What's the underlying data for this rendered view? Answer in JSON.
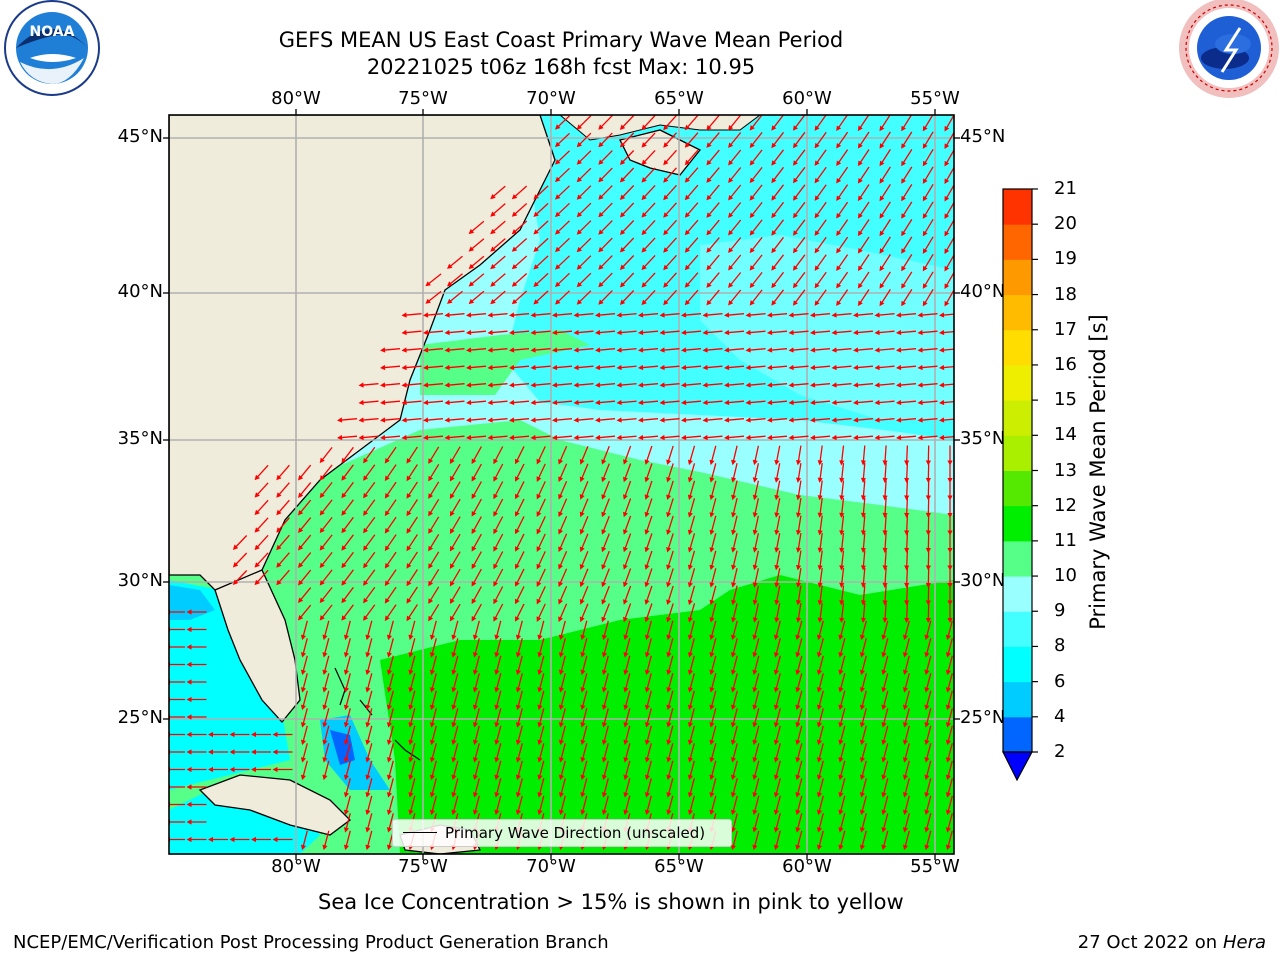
{
  "title": {
    "line1": "GEFS MEAN US East Coast Primary Wave Mean Period",
    "line2": "20221025 t06z 168h fcst   Max: 10.95"
  },
  "logos": {
    "noaa": {
      "icon": "noaa-logo-icon",
      "text": "NOAA"
    },
    "nws": {
      "icon": "nws-logo-icon"
    }
  },
  "map": {
    "lon_ticks": [
      "80°W",
      "75°W",
      "70°W",
      "65°W",
      "60°W",
      "55°W"
    ],
    "lat_ticks": [
      "45°N",
      "40°N",
      "35°N",
      "30°N",
      "25°N"
    ],
    "lon_range": [
      -85,
      -54.3
    ],
    "lat_range": [
      20.5,
      46
    ],
    "grid": true,
    "arrow_color": "#ff0000",
    "land_color": "#efecdc",
    "legend": {
      "label": "Primary Wave Direction (unscaled)"
    }
  },
  "colorbar": {
    "label": "Primary Wave Mean Period [s]",
    "ticks": [
      "2",
      "4",
      "6",
      "8",
      "9",
      "10",
      "11",
      "12",
      "13",
      "14",
      "15",
      "16",
      "17",
      "18",
      "19",
      "20",
      "21"
    ],
    "colors": [
      "#0066ff",
      "#00ccff",
      "#00ffff",
      "#44ffff",
      "#99ffff",
      "#55ff88",
      "#00ee00",
      "#55e800",
      "#aaee00",
      "#ccee00",
      "#eeee00",
      "#ffdd00",
      "#ffbb00",
      "#ff9900",
      "#ff6600",
      "#ff3300"
    ],
    "extend_color": "#0000ff"
  },
  "footnote": "Sea Ice Concentration > 15% is shown in pink to yellow",
  "footer": {
    "left": "NCEP/EMC/Verification Post Processing Product Generation Branch",
    "right_date": "27 Oct 2022 on ",
    "right_host": "Hera"
  }
}
